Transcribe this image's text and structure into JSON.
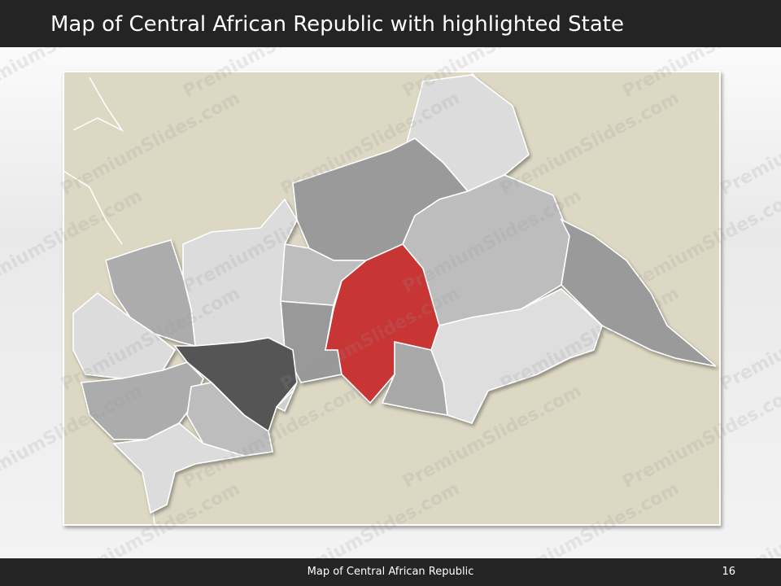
{
  "header": {
    "title": "Map of Central African Republic with highlighted State"
  },
  "footer": {
    "title": "Map of Central African Republic",
    "page_number": 16
  },
  "watermark": "PremiumSlides.com"
}
